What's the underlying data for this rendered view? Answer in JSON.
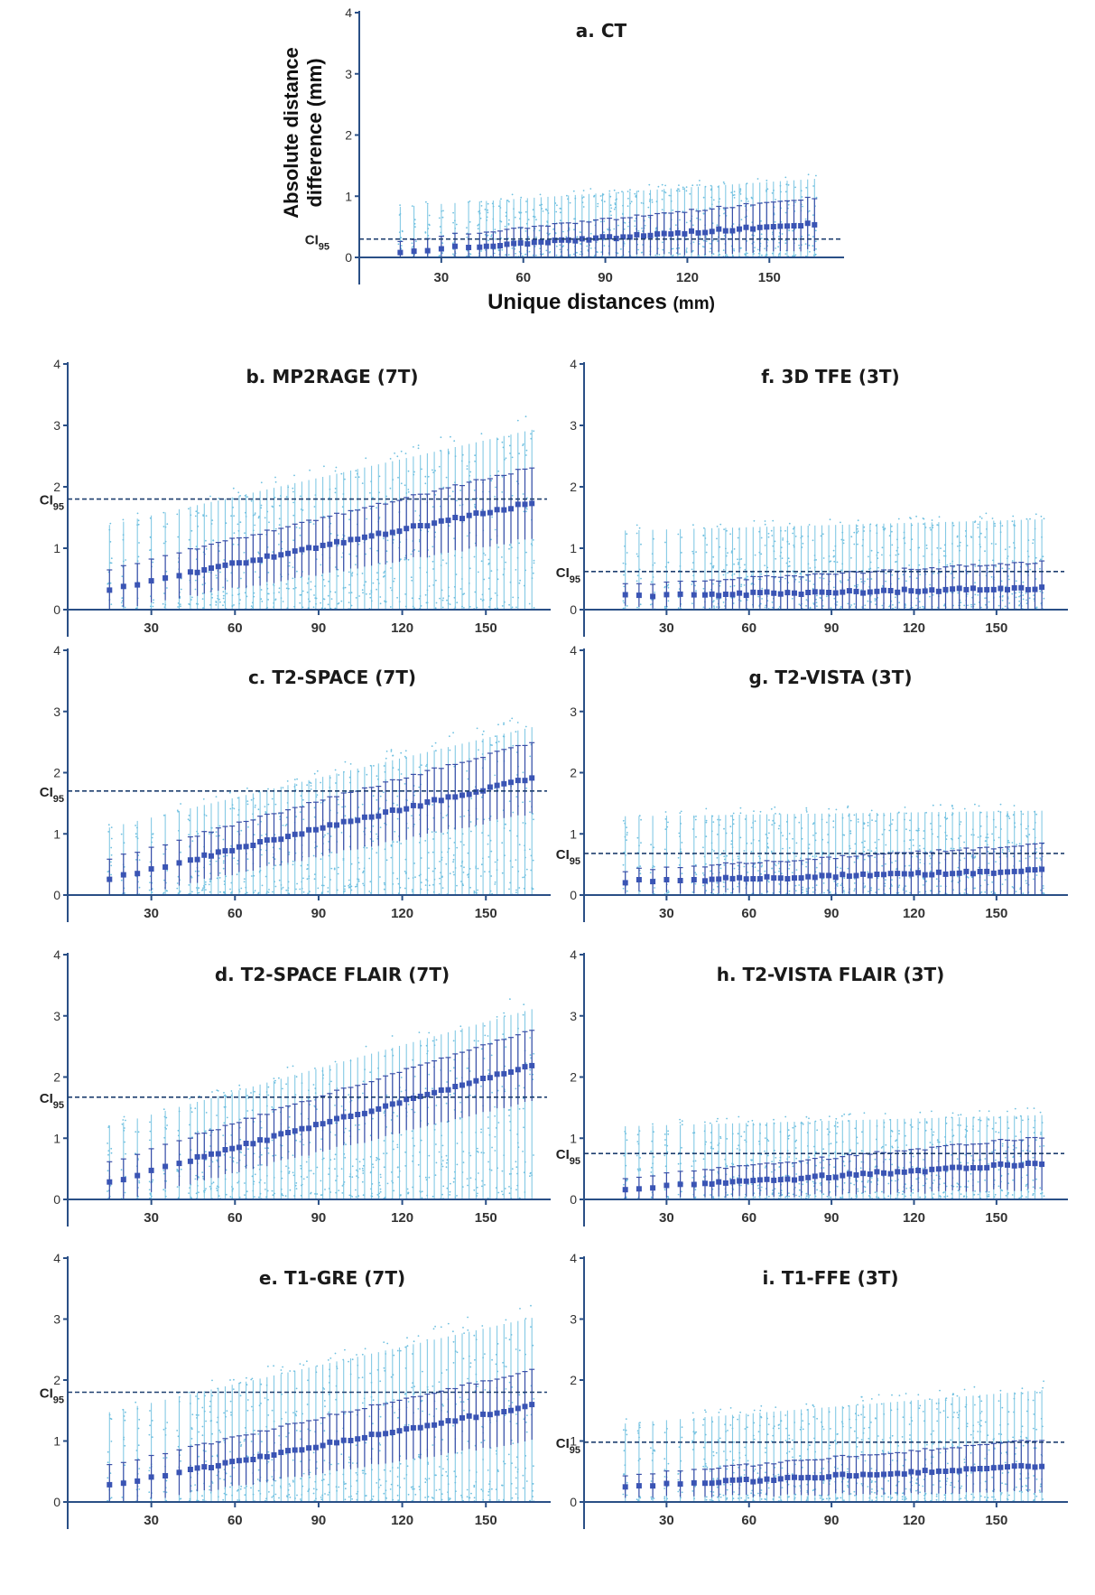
{
  "colors": {
    "scatter": "#6fc0e0",
    "mean": "#3a54b4",
    "errorbar": "#3a4fa8",
    "axis": "#2a4f86"
  },
  "ci_label_main": "CI",
  "ci_label_sub": "95",
  "chart_data": [
    {
      "id": "a",
      "type": "scatter",
      "title": "a. CT",
      "xlabel": "Unique distances",
      "xlabel_unit": "(mm)",
      "ylabel_line1": "Absolute distance",
      "ylabel_line2": "difference (mm)",
      "xlim": [
        0,
        175
      ],
      "ylim": [
        0,
        4
      ],
      "xticks": [
        30,
        60,
        90,
        120,
        150
      ],
      "yticks": [
        0,
        1,
        2,
        3,
        4
      ],
      "ci95": 0.3,
      "mean_start": 0.1,
      "mean_end": 0.55,
      "spread_start": 0.9,
      "spread_end": 1.4
    },
    {
      "id": "b",
      "type": "scatter",
      "title": "b. MP2RAGE (7T)",
      "xlim": [
        0,
        170
      ],
      "ylim": [
        0,
        4
      ],
      "xticks": [
        30,
        60,
        90,
        120,
        150
      ],
      "yticks": [
        0,
        1,
        2,
        3,
        4
      ],
      "ci95": 1.8,
      "mean_start": 0.33,
      "mean_end": 1.75,
      "spread_start": 1.5,
      "spread_end": 3.2
    },
    {
      "id": "c",
      "type": "scatter",
      "title": "c. T2-SPACE (7T)",
      "xlim": [
        0,
        170
      ],
      "ylim": [
        0,
        4
      ],
      "xticks": [
        30,
        60,
        90,
        120,
        150
      ],
      "yticks": [
        0,
        1,
        2,
        3,
        4
      ],
      "ci95": 1.7,
      "mean_start": 0.26,
      "mean_end": 1.93,
      "spread_start": 1.2,
      "spread_end": 3.0
    },
    {
      "id": "d",
      "type": "scatter",
      "title": "d. T2-SPACE FLAIR (7T)",
      "xlim": [
        0,
        170
      ],
      "ylim": [
        0,
        4
      ],
      "xticks": [
        30,
        60,
        90,
        120,
        150
      ],
      "yticks": [
        0,
        1,
        2,
        3,
        4
      ],
      "ci95": 1.67,
      "mean_start": 0.28,
      "mean_end": 2.2,
      "spread_start": 1.3,
      "spread_end": 3.4
    },
    {
      "id": "e",
      "type": "scatter",
      "title": "e. T1-GRE (7T)",
      "xlim": [
        0,
        170
      ],
      "ylim": [
        0,
        4
      ],
      "xticks": [
        30,
        60,
        90,
        120,
        150
      ],
      "yticks": [
        0,
        1,
        2,
        3,
        4
      ],
      "ci95": 1.8,
      "mean_start": 0.27,
      "mean_end": 1.6,
      "spread_start": 1.6,
      "spread_end": 3.3
    },
    {
      "id": "f",
      "type": "scatter",
      "title": "f. 3D TFE (3T)",
      "xlim": [
        0,
        175
      ],
      "ylim": [
        0,
        4
      ],
      "xticks": [
        30,
        60,
        90,
        120,
        150
      ],
      "yticks": [
        0,
        1,
        2,
        3,
        4
      ],
      "ci95": 0.62,
      "mean_start": 0.22,
      "mean_end": 0.35,
      "spread_start": 1.4,
      "spread_end": 1.6
    },
    {
      "id": "g",
      "type": "scatter",
      "title": "g. T2-VISTA (3T)",
      "xlim": [
        0,
        175
      ],
      "ylim": [
        0,
        4
      ],
      "xticks": [
        30,
        60,
        90,
        120,
        150
      ],
      "yticks": [
        0,
        1,
        2,
        3,
        4
      ],
      "ci95": 0.68,
      "mean_start": 0.22,
      "mean_end": 0.4,
      "spread_start": 1.4,
      "spread_end": 1.5
    },
    {
      "id": "h",
      "type": "scatter",
      "title": "h. T2-VISTA FLAIR (3T)",
      "xlim": [
        0,
        175
      ],
      "ylim": [
        0,
        4
      ],
      "xticks": [
        30,
        60,
        90,
        120,
        150
      ],
      "yticks": [
        0,
        1,
        2,
        3,
        4
      ],
      "ci95": 0.75,
      "mean_start": 0.17,
      "mean_end": 0.6,
      "spread_start": 1.3,
      "spread_end": 1.5
    },
    {
      "id": "i",
      "type": "scatter",
      "title": "i. T1-FFE (3T)",
      "xlim": [
        0,
        175
      ],
      "ylim": [
        0,
        4
      ],
      "xticks": [
        30,
        60,
        90,
        120,
        150
      ],
      "yticks": [
        0,
        1,
        2,
        3,
        4
      ],
      "ci95": 0.98,
      "mean_start": 0.25,
      "mean_end": 0.6,
      "spread_start": 1.4,
      "spread_end": 2.0
    }
  ]
}
